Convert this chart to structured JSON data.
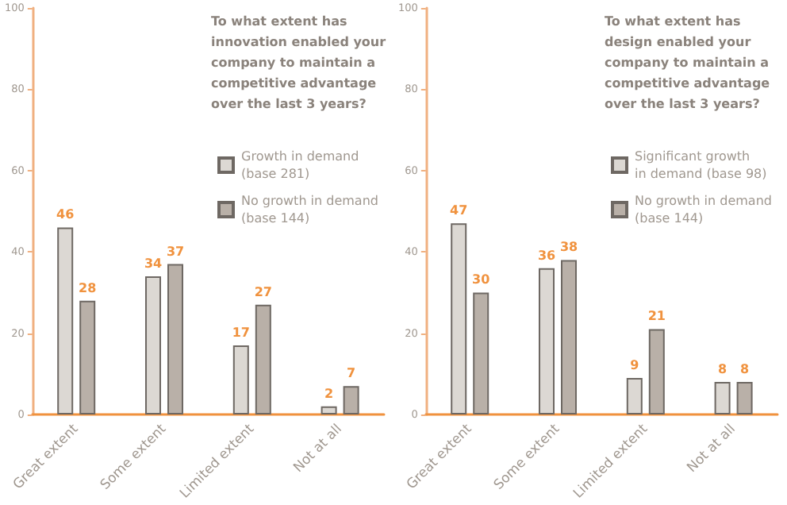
{
  "chart_data": [
    {
      "type": "bar",
      "title": "To what extent has innovation enabled your company to maintain a competitive advantage over the last 3 years?",
      "categories": [
        "Great extent",
        "Some extent",
        "Limited extent",
        "Not at all"
      ],
      "series": [
        {
          "name": "Growth in demand (base 281)",
          "color": "#dcd8d3",
          "values": [
            46,
            34,
            17,
            2
          ]
        },
        {
          "name": "No growth in demand (base 144)",
          "color": "#b9b0a8",
          "values": [
            28,
            37,
            27,
            7
          ]
        }
      ],
      "ylim": [
        0,
        100
      ],
      "yticks": [
        0,
        20,
        40,
        60,
        80,
        100
      ],
      "grid": false,
      "legend": "top right",
      "data_labels": true
    },
    {
      "type": "bar",
      "title": "To what extent has design enabled your company to maintain a competitive advantage over the last 3 years?",
      "categories": [
        "Great extent",
        "Some extent",
        "Limited extent",
        "Not at all"
      ],
      "series": [
        {
          "name": "Significant growth in demand (base 98)",
          "color": "#dcd8d3",
          "values": [
            47,
            36,
            9,
            8
          ]
        },
        {
          "name": "No growth in demand (base 144)",
          "color": "#b9b0a8",
          "values": [
            30,
            38,
            21,
            8
          ]
        }
      ],
      "ylim": [
        0,
        100
      ],
      "yticks": [
        0,
        20,
        40,
        60,
        80,
        100
      ],
      "grid": false,
      "legend": "top right",
      "data_labels": true
    }
  ]
}
